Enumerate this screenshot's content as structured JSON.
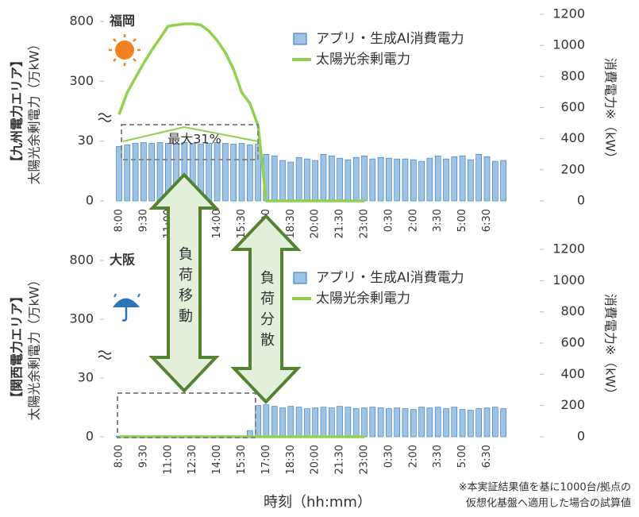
{
  "chart_data": [
    {
      "type": "bar_line",
      "area_label": "【九州電力エリア】",
      "city": "福岡",
      "annotation": "最大31%",
      "y_label": "太陽光余剰電力（万kW）",
      "y2_label": "消費電力※（kW）",
      "categories": [
        "8:00",
        null,
        null,
        "9:30",
        null,
        null,
        "11:00",
        null,
        null,
        "12:30",
        null,
        null,
        "14:00",
        null,
        null,
        "15:30",
        null,
        null,
        "17:00",
        null,
        null,
        "18:30",
        null,
        null,
        "20:00",
        null,
        null,
        "21:30",
        null,
        null,
        "23:00",
        null,
        null,
        "0:30",
        null,
        null,
        "2:00",
        null,
        null,
        "3:30",
        null,
        null,
        "5:00",
        null,
        null,
        "6:30",
        null,
        null
      ],
      "ylim": [
        0,
        800
      ],
      "yticks": [
        0,
        30,
        300,
        800
      ],
      "y_break": true,
      "y2lim": [
        0,
        1200
      ],
      "y2ticks": [
        0,
        200,
        400,
        600,
        800,
        1000,
        1200
      ],
      "series": [
        {
          "name": "アプリ・生成AI消費電力",
          "color": "#9dc3e6",
          "kind": "bar",
          "axis": "y2",
          "values": [
            350,
            360,
            370,
            375,
            370,
            375,
            370,
            365,
            375,
            370,
            365,
            370,
            375,
            370,
            365,
            370,
            360,
            365,
            300,
            290,
            260,
            250,
            280,
            270,
            260,
            300,
            290,
            275,
            265,
            280,
            290,
            270,
            280,
            275,
            270,
            270,
            265,
            255,
            275,
            290,
            270,
            285,
            290,
            265,
            300,
            285,
            255,
            260
          ]
        },
        {
          "name": "太陽光余剰電力",
          "color": "#92d050",
          "kind": "line",
          "values": [
            150,
            250,
            330,
            450,
            560,
            660,
            760,
            770,
            780,
            780,
            770,
            720,
            640,
            540,
            400,
            250,
            200,
            100,
            0,
            0,
            0,
            0,
            0,
            0,
            0,
            0,
            0,
            0,
            0,
            0,
            0,
            null,
            null,
            null,
            null,
            null,
            null,
            null,
            null,
            null,
            null,
            null,
            null,
            null,
            null,
            null,
            null,
            null
          ]
        }
      ]
    },
    {
      "type": "bar_line",
      "area_label": "【関西電力エリア】",
      "city": "大阪",
      "y_label": "太陽光余剰電力（万kW）",
      "y2_label": "消費電力※（kW）",
      "categories": [
        "8:00",
        null,
        null,
        "9:30",
        null,
        null,
        "11:00",
        null,
        null,
        "12:30",
        null,
        null,
        "14:00",
        null,
        null,
        "15:30",
        null,
        null,
        "17:00",
        null,
        null,
        "18:30",
        null,
        null,
        "20:00",
        null,
        null,
        "21:30",
        null,
        null,
        "23:00",
        null,
        null,
        "0:30",
        null,
        null,
        "2:00",
        null,
        null,
        "3:30",
        null,
        null,
        "5:00",
        null,
        null,
        "6:30",
        null,
        null
      ],
      "ylim": [
        0,
        800
      ],
      "yticks": [
        0,
        30,
        300,
        800
      ],
      "y_break": true,
      "y2lim": [
        0,
        1200
      ],
      "y2ticks": [
        0,
        200,
        400,
        600,
        800,
        1000,
        1200
      ],
      "series": [
        {
          "name": "アプリ・生成AI消費電力",
          "color": "#9dc3e6",
          "kind": "bar",
          "axis": "y2",
          "values": [
            5,
            5,
            5,
            5,
            5,
            5,
            5,
            5,
            5,
            5,
            5,
            5,
            5,
            5,
            5,
            5,
            40,
            200,
            205,
            195,
            185,
            195,
            190,
            180,
            185,
            190,
            185,
            195,
            190,
            180,
            185,
            190,
            185,
            180,
            185,
            180,
            175,
            190,
            185,
            190,
            180,
            190,
            175,
            170,
            180,
            185,
            190,
            180
          ]
        },
        {
          "name": "太陽光余剰電力",
          "color": "#92d050",
          "kind": "line",
          "values": [
            0,
            0,
            0,
            0,
            0,
            0,
            0,
            0,
            0,
            0,
            0,
            0,
            0,
            0,
            0,
            0,
            0,
            0,
            0,
            0,
            0,
            0,
            0,
            0,
            0,
            0,
            0,
            0,
            0,
            0,
            0,
            null,
            null,
            null,
            null,
            null,
            null,
            null,
            null,
            null,
            null,
            null,
            null,
            null,
            null,
            null,
            null,
            null
          ]
        }
      ]
    }
  ],
  "arrows": [
    "負荷移動",
    "負荷分散"
  ],
  "x_label": "時刻（hh:mm）",
  "footnote": [
    "※本実証結果値を基に1000台/拠点の",
    "仮想化基盤へ適用した場合の試算値"
  ]
}
